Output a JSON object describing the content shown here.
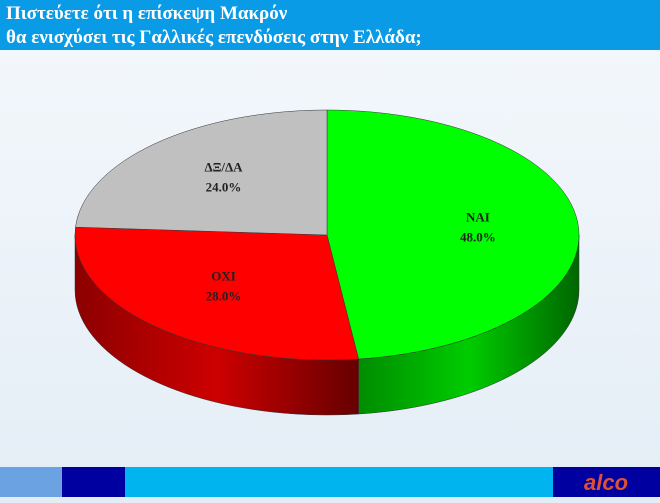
{
  "chart_data": {
    "type": "pie3d",
    "title": [
      "Πιστεύετε ότι η επίσκεψη Μακρόν",
      "θα ενισχύσει τις Γαλλικές επενδύσεις στην Ελλάδα;"
    ],
    "categories": [
      "ΝΑΙ",
      "ΟΧΙ",
      "ΔΞ/ΔΑ"
    ],
    "values": [
      48,
      28,
      24
    ],
    "value_labels": [
      "48.0%",
      "28.0%",
      "24.0%"
    ],
    "colors": [
      "#00ff00",
      "#ff0000",
      "#c0c0c0"
    ]
  },
  "footer": {
    "logo": "alco"
  }
}
